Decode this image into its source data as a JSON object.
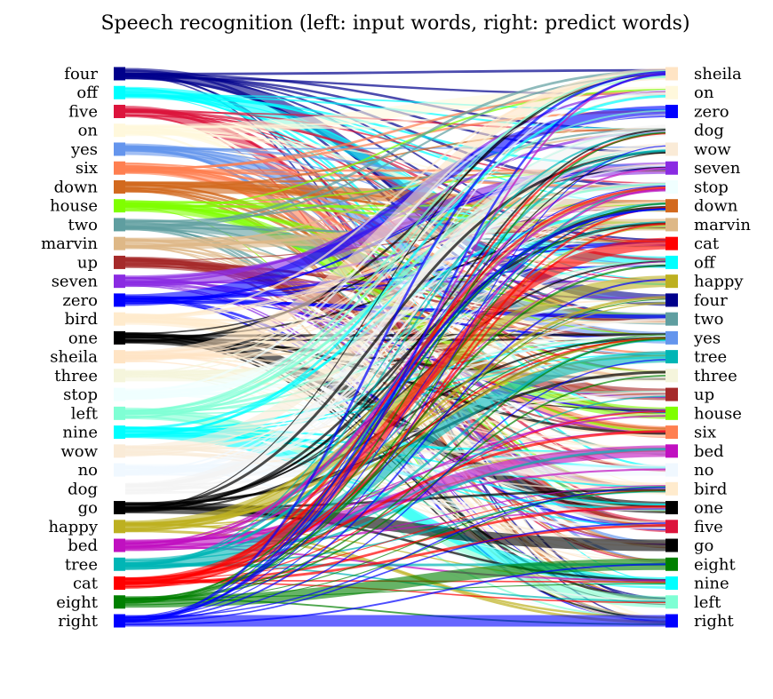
{
  "chart_data": {
    "type": "sankey",
    "title": "Speech recognition (left: input words, right: predict words)",
    "left_words": [
      "four",
      "off",
      "five",
      "on",
      "yes",
      "six",
      "down",
      "house",
      "two",
      "marvin",
      "up",
      "seven",
      "zero",
      "bird",
      "one",
      "sheila",
      "three",
      "stop",
      "left",
      "nine",
      "wow",
      "no",
      "dog",
      "go",
      "happy",
      "bed",
      "tree",
      "cat",
      "eight",
      "right"
    ],
    "right_words": [
      "sheila",
      "on",
      "zero",
      "dog",
      "wow",
      "seven",
      "stop",
      "down",
      "marvin",
      "cat",
      "off",
      "happy",
      "four",
      "two",
      "yes",
      "tree",
      "three",
      "up",
      "house",
      "six",
      "bed",
      "no",
      "bird",
      "one",
      "five",
      "go",
      "eight",
      "nine",
      "left",
      "right"
    ],
    "colors": {
      "four": "#00008b",
      "off": "#00ffff",
      "five": "#dc143c",
      "on": "#fff8dc",
      "yes": "#6495ed",
      "six": "#ff7f50",
      "down": "#d2691e",
      "house": "#7fff00",
      "two": "#5f9ea0",
      "marvin": "#deb887",
      "up": "#a52a2a",
      "seven": "#8a2be2",
      "zero": "#0000ff",
      "bird": "#ffebcd",
      "one": "#000000",
      "sheila": "#ffe4c4",
      "three": "#f5f5dc",
      "stop": "#f0ffff",
      "left": "#7fffd4",
      "nine": "#00ffff",
      "wow": "#faebd7",
      "no": "#f0f8ff",
      "dog": "#ffffff",
      "go": "#000000",
      "happy": "#bdb020",
      "bed": "#c010c0",
      "tree": "#00b5b5",
      "cat": "#ff0000",
      "eight": "#008000",
      "right": "#0000ff"
    },
    "self_flow_fraction": 0.55,
    "links_per_word": 12
  }
}
